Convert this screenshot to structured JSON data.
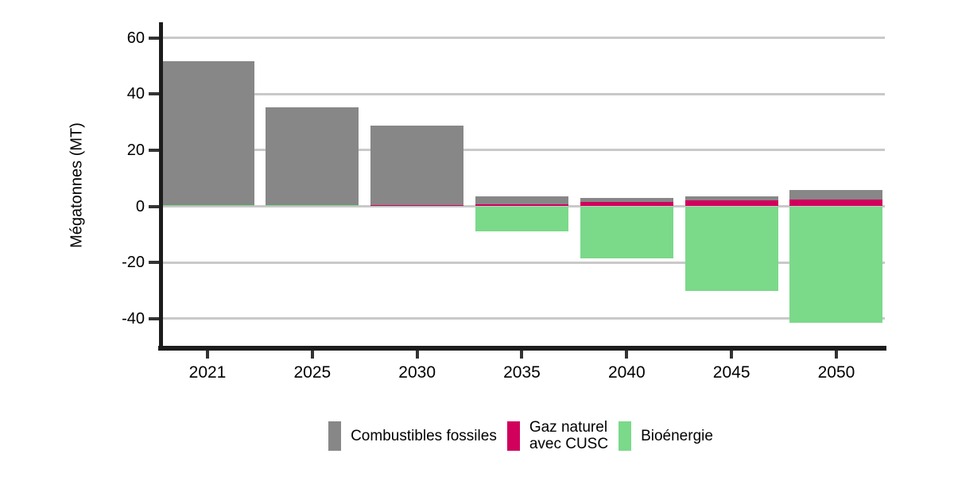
{
  "chart_data": {
    "type": "bar",
    "stacked": true,
    "ylabel": "Mégatonnes (MT)",
    "categories": [
      "2021",
      "2025",
      "2030",
      "2035",
      "2040",
      "2045",
      "2050"
    ],
    "series": [
      {
        "id": "combustibles-fossiles",
        "name": "Combustibles fossiles",
        "legend_label": "Combustibles fossiles",
        "color": "#878787",
        "values": [
          51.3,
          34.8,
          28.1,
          2.6,
          1.4,
          1.4,
          3.3
        ]
      },
      {
        "id": "gaz-naturel-avec-cusc",
        "name": "Gaz naturel avec CUSC",
        "legend_label": "Gaz naturel\navec CUSC",
        "color": "#D0005C",
        "values": [
          0,
          0,
          0.5,
          0.8,
          1.5,
          2.0,
          2.4
        ]
      },
      {
        "id": "bioenergie",
        "name": "Bioénergie",
        "legend_label": "Bioénergie",
        "color": "#7BD98A",
        "values": [
          0.4,
          0.4,
          0,
          -8.9,
          -18.5,
          -30.2,
          -41.5
        ]
      }
    ],
    "yticks": [
      60,
      40,
      20,
      0,
      -20,
      -40
    ],
    "ylim": [
      -48,
      66
    ],
    "grid": true,
    "legend_position": "bottom",
    "colors": {
      "axis": "#1C1C1C",
      "grid": "#C9C9C9",
      "tick": "#333333",
      "text": "#000000",
      "background": "#FFFFFF"
    }
  }
}
